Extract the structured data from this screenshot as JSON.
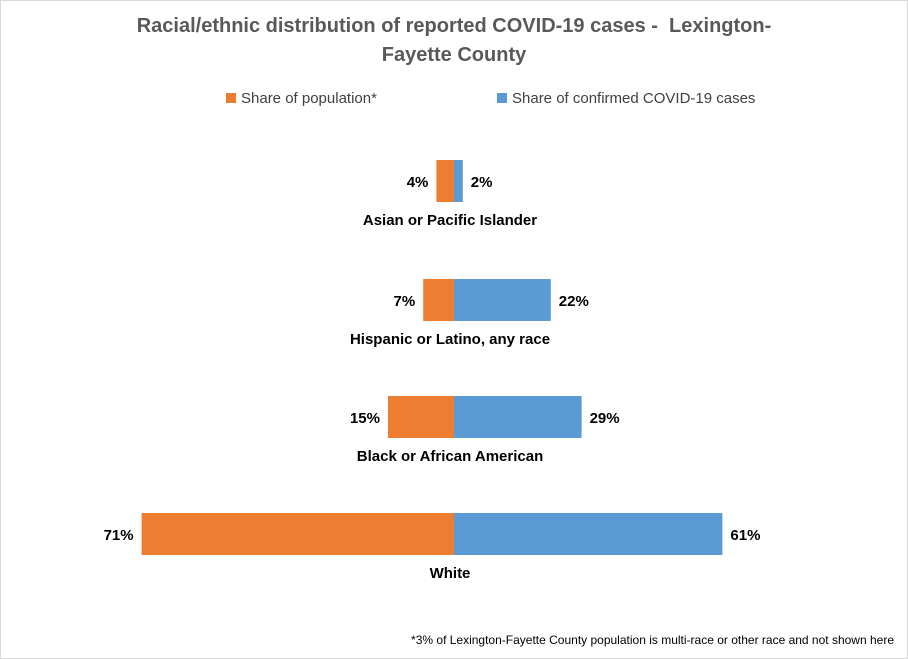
{
  "chart_data": {
    "type": "bar",
    "orientation": "horizontal-diverging",
    "title": "Racial/ethnic distribution of reported COVID-19 cases -  Lexington-Fayette County",
    "categories": [
      "Asian or Pacific Islander",
      "Hispanic or Latino, any race",
      "Black or African American",
      "White"
    ],
    "series": [
      {
        "name": "Share of population*",
        "color": "#ED7D31",
        "values": [
          4,
          7,
          15,
          71
        ],
        "labels": [
          "4%",
          "7%",
          "15%",
          "71%"
        ]
      },
      {
        "name": "Share of confirmed COVID-19 cases",
        "color": "#5B9BD5",
        "values": [
          2,
          22,
          29,
          61
        ],
        "labels": [
          "2%",
          "22%",
          "29%",
          "61%"
        ]
      }
    ],
    "legend": "top",
    "grid": false,
    "footnote": "*3% of Lexington-Fayette County population is multi-race or other race and not shown here"
  }
}
